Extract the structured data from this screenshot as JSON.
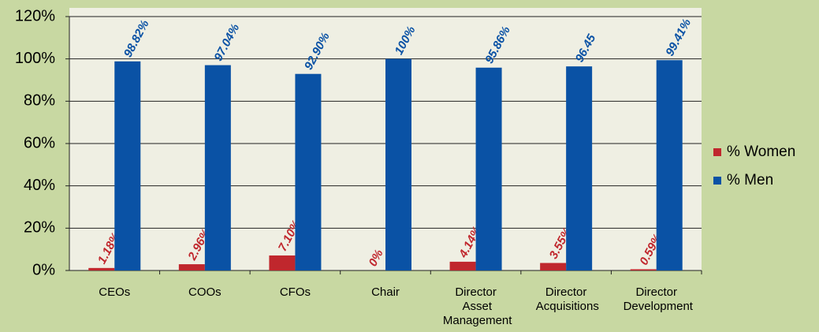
{
  "chart_data": {
    "type": "bar",
    "categories": [
      "CEOs",
      "COOs",
      "CFOs",
      "Chair",
      "Director Asset Management",
      "Director Acquisitions",
      "Director Development"
    ],
    "series": [
      {
        "name": "% Women",
        "color": "#c0272d",
        "values": [
          1.18,
          2.96,
          7.1,
          0,
          4.14,
          3.55,
          0.59
        ],
        "value_labels": [
          "1.18%",
          "2.96%",
          "7.10%",
          "0%",
          "4.14%",
          "3.55%",
          "0.59%"
        ]
      },
      {
        "name": "% Men",
        "color": "#0a52a5",
        "values": [
          98.82,
          97.04,
          92.9,
          100,
          95.86,
          96.45,
          99.41
        ],
        "value_labels": [
          "98.82%",
          "97.04%",
          "92.90%",
          "100%",
          "95.86%",
          "96.45",
          "99.41%"
        ]
      }
    ],
    "ylim": [
      0,
      120
    ],
    "yticks": [
      {
        "value": 0,
        "label": "0%"
      },
      {
        "value": 20,
        "label": "20%"
      },
      {
        "value": 40,
        "label": "40%"
      },
      {
        "value": 60,
        "label": "60%"
      },
      {
        "value": 80,
        "label": "80%"
      },
      {
        "value": 100,
        "label": "100%"
      },
      {
        "value": 120,
        "label": "120%"
      }
    ],
    "grid": true,
    "legend": "right"
  }
}
